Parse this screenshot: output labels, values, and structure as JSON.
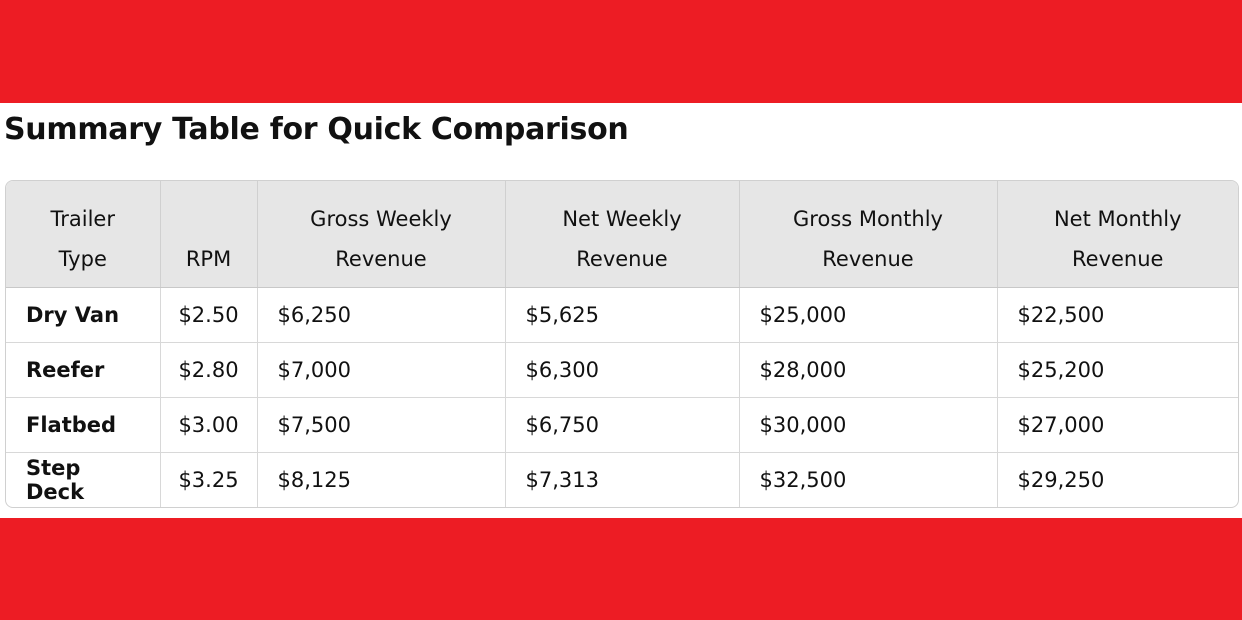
{
  "colors": {
    "band": "#ED1C24",
    "header_bg": "#E6E6E6"
  },
  "title": "Summary Table for Quick Comparison",
  "table": {
    "headers": [
      "Trailer Type",
      "RPM",
      "Gross Weekly Revenue",
      "Net Weekly Revenue",
      "Gross Monthly Revenue",
      "Net Monthly Revenue"
    ],
    "rows": [
      [
        "Dry Van",
        "$2.50",
        "$6,250",
        "$5,625",
        "$25,000",
        "$22,500"
      ],
      [
        "Reefer",
        "$2.80",
        "$7,000",
        "$6,300",
        "$28,000",
        "$25,200"
      ],
      [
        "Flatbed",
        "$3.00",
        "$7,500",
        "$6,750",
        "$30,000",
        "$27,000"
      ],
      [
        "Step Deck",
        "$3.25",
        "$8,125",
        "$7,313",
        "$32,500",
        "$29,250"
      ]
    ]
  }
}
